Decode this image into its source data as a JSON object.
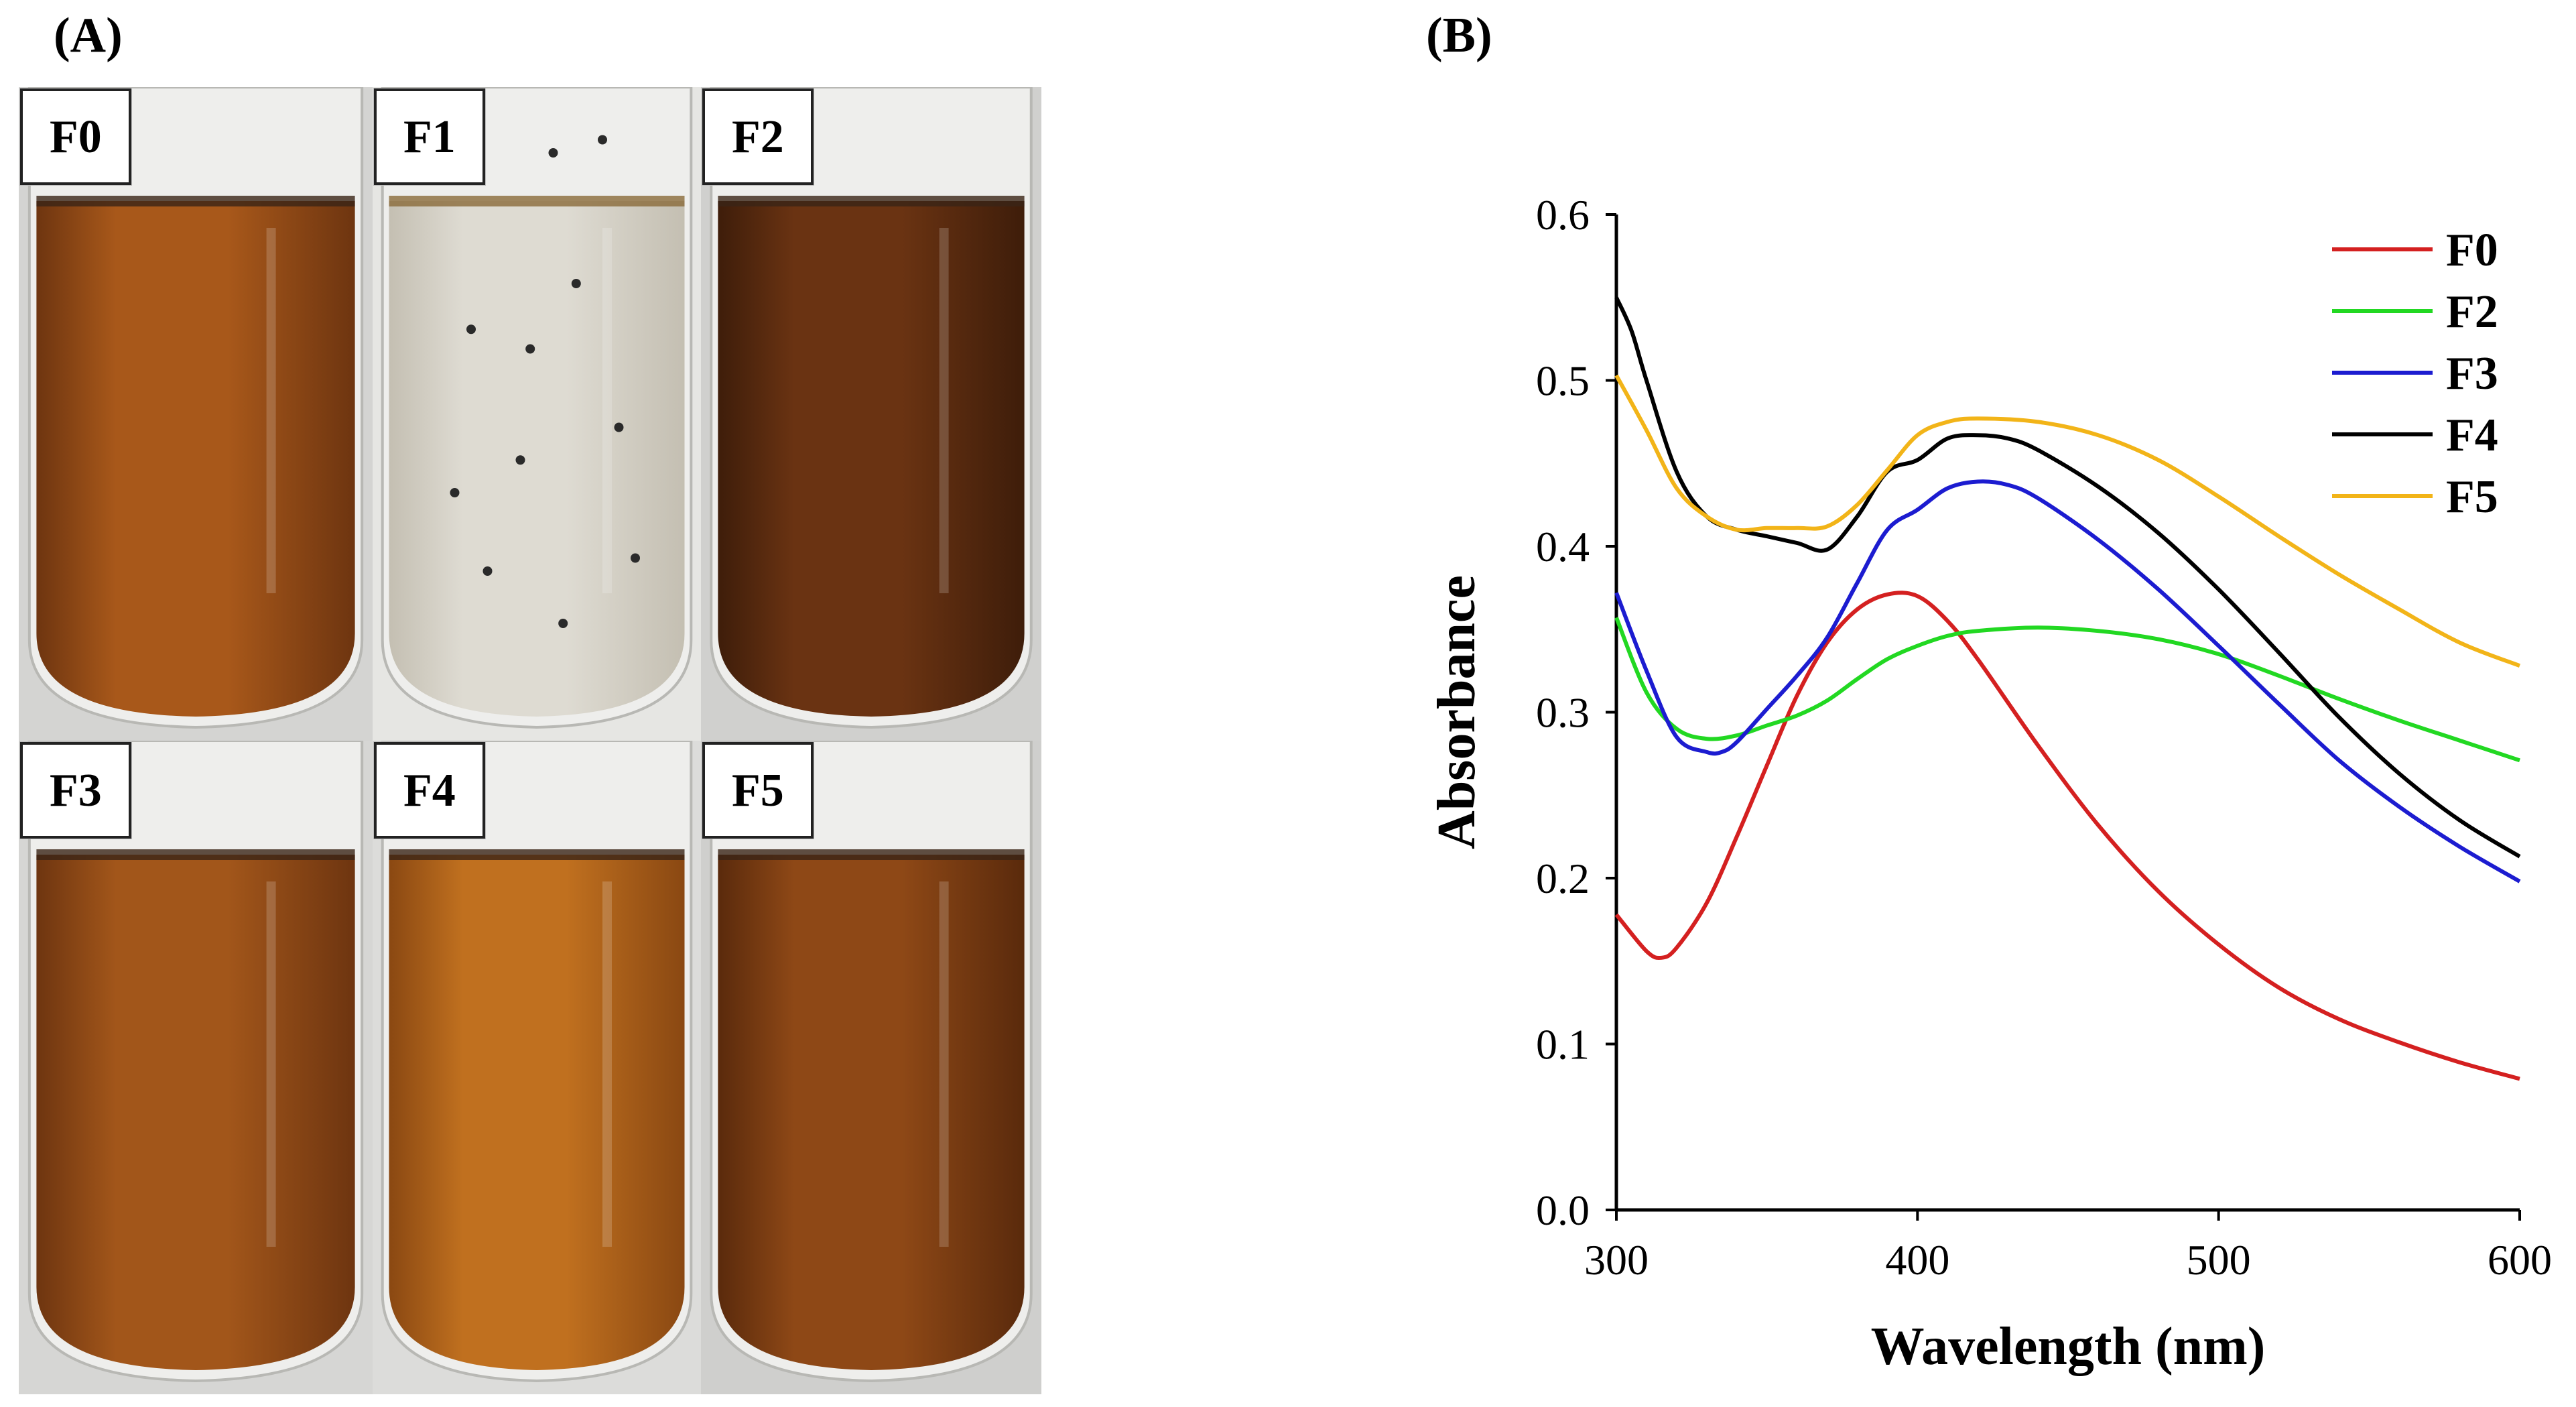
{
  "panel_a": {
    "label": "(A)",
    "tubes": [
      {
        "name": "F0",
        "liquid": "#a8581a",
        "liquid_dark": "#6e3510",
        "bg": "#d4d4d2",
        "clear": false
      },
      {
        "name": "F1",
        "liquid": "#dedbd2",
        "liquid_dark": "#c4bfb2",
        "bg": "#e6e6e3",
        "clear": true
      },
      {
        "name": "F2",
        "liquid": "#6a3312",
        "liquid_dark": "#3e1d0a",
        "bg": "#d0d0ce",
        "clear": false
      },
      {
        "name": "F3",
        "liquid": "#a2561a",
        "liquid_dark": "#6e3510",
        "bg": "#d6d6d4",
        "clear": false
      },
      {
        "name": "F4",
        "liquid": "#c0701f",
        "liquid_dark": "#8a4812",
        "bg": "#dcdcda",
        "clear": false
      },
      {
        "name": "F5",
        "liquid": "#8e4816",
        "liquid_dark": "#5a2a0c",
        "bg": "#cfcfcd",
        "clear": false
      }
    ]
  },
  "panel_b": {
    "label": "(B)"
  },
  "chart_data": {
    "type": "line",
    "xlabel": "Wavelength (nm)",
    "ylabel": "Absorbance",
    "xlim": [
      300,
      600
    ],
    "ylim": [
      0,
      0.6
    ],
    "xticks": [
      300,
      400,
      500,
      600
    ],
    "yticks": [
      0.0,
      0.1,
      0.2,
      0.3,
      0.4,
      0.5,
      0.6
    ],
    "ytick_labels": [
      "0.0",
      "0.1",
      "0.2",
      "0.3",
      "0.4",
      "0.5",
      "0.6"
    ],
    "grid": false,
    "legend_position": "top-right",
    "series": [
      {
        "name": "F0",
        "color": "#d42020",
        "x": [
          300,
          310,
          315,
          320,
          330,
          340,
          350,
          360,
          370,
          380,
          390,
          400,
          410,
          420,
          440,
          460,
          480,
          500,
          520,
          540,
          560,
          580,
          600
        ],
        "y": [
          0.178,
          0.156,
          0.152,
          0.158,
          0.185,
          0.225,
          0.268,
          0.31,
          0.342,
          0.362,
          0.371,
          0.37,
          0.355,
          0.332,
          0.28,
          0.232,
          0.192,
          0.16,
          0.134,
          0.115,
          0.101,
          0.089,
          0.079
        ]
      },
      {
        "name": "F2",
        "color": "#22d822",
        "x": [
          300,
          310,
          320,
          330,
          340,
          350,
          360,
          370,
          380,
          390,
          400,
          410,
          420,
          440,
          460,
          480,
          500,
          520,
          540,
          560,
          580,
          600
        ],
        "y": [
          0.357,
          0.312,
          0.29,
          0.284,
          0.286,
          0.292,
          0.298,
          0.307,
          0.32,
          0.332,
          0.34,
          0.346,
          0.349,
          0.351,
          0.349,
          0.344,
          0.335,
          0.322,
          0.308,
          0.295,
          0.283,
          0.271
        ]
      },
      {
        "name": "F3",
        "color": "#1c1cd0",
        "x": [
          300,
          310,
          320,
          330,
          335,
          340,
          350,
          360,
          370,
          380,
          390,
          400,
          410,
          420,
          430,
          440,
          460,
          480,
          500,
          520,
          540,
          560,
          580,
          600
        ],
        "y": [
          0.372,
          0.325,
          0.285,
          0.276,
          0.276,
          0.282,
          0.302,
          0.322,
          0.345,
          0.378,
          0.41,
          0.422,
          0.435,
          0.439,
          0.437,
          0.429,
          0.404,
          0.374,
          0.34,
          0.305,
          0.271,
          0.243,
          0.219,
          0.198
        ]
      },
      {
        "name": "F4",
        "color": "#000000",
        "x": [
          300,
          305,
          310,
          320,
          330,
          340,
          350,
          360,
          370,
          380,
          390,
          400,
          410,
          420,
          430,
          440,
          460,
          480,
          500,
          520,
          540,
          560,
          580,
          600
        ],
        "y": [
          0.55,
          0.53,
          0.5,
          0.445,
          0.418,
          0.41,
          0.406,
          0.402,
          0.398,
          0.418,
          0.445,
          0.452,
          0.465,
          0.467,
          0.465,
          0.458,
          0.436,
          0.408,
          0.374,
          0.336,
          0.297,
          0.263,
          0.235,
          0.213
        ]
      },
      {
        "name": "F5",
        "color": "#f2b418",
        "x": [
          300,
          310,
          320,
          330,
          340,
          350,
          360,
          370,
          380,
          390,
          400,
          410,
          420,
          440,
          460,
          480,
          500,
          520,
          540,
          560,
          580,
          600
        ],
        "y": [
          0.503,
          0.47,
          0.435,
          0.418,
          0.41,
          0.411,
          0.411,
          0.412,
          0.425,
          0.446,
          0.467,
          0.475,
          0.477,
          0.475,
          0.467,
          0.452,
          0.43,
          0.406,
          0.383,
          0.362,
          0.342,
          0.328
        ]
      }
    ]
  }
}
